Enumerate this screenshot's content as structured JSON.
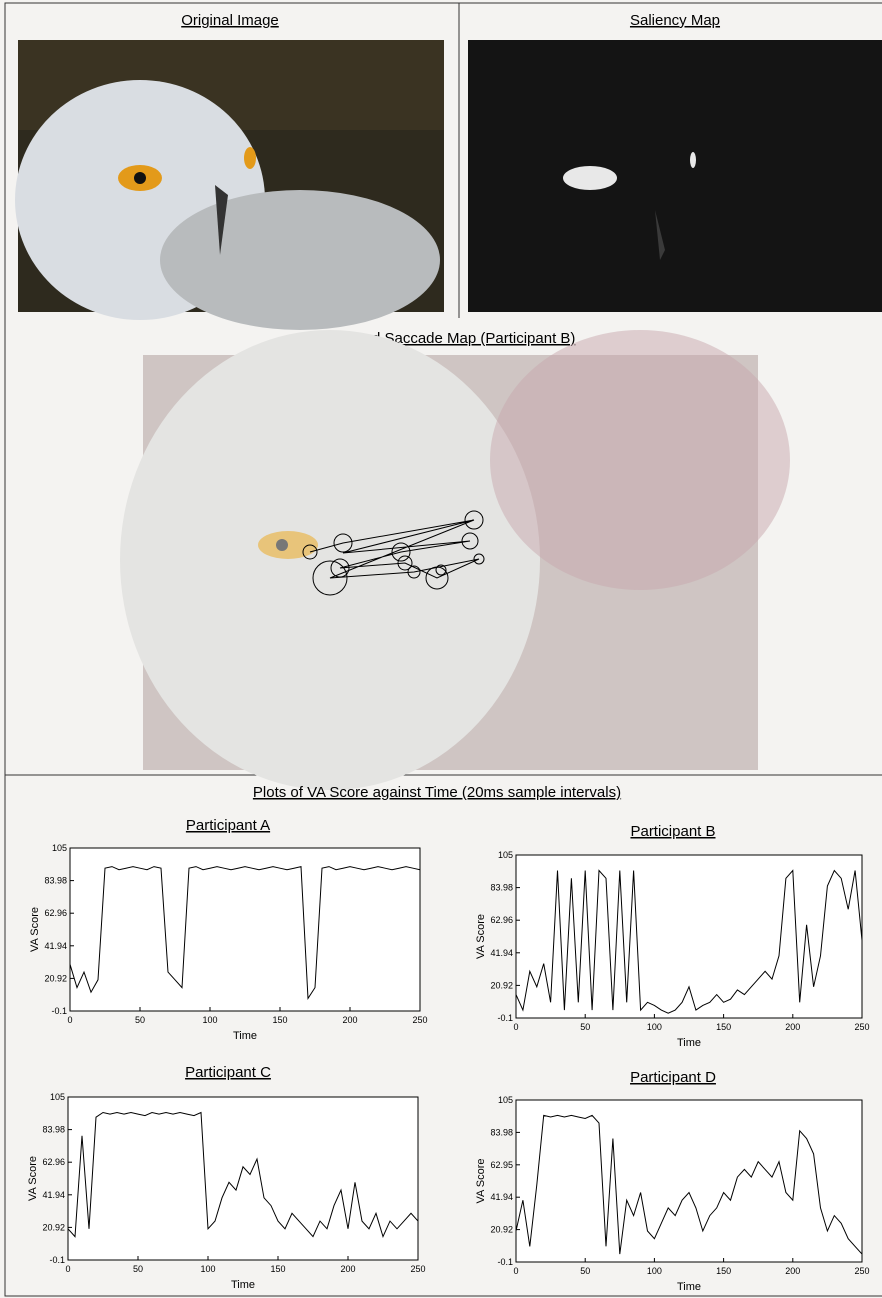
{
  "panels": {
    "original_title": "Original Image",
    "saliency_title": "Saliency Map",
    "fixation_title": "Fixation and Saccade Map (Participant B)",
    "plots_title": "Plots of VA Score against Time (20ms sample intervals)"
  },
  "chart_data": [
    {
      "type": "line",
      "title": "Participant A",
      "x_label": "Time",
      "y_label": "VA Score",
      "color": "#000000",
      "x": [
        0,
        5,
        10,
        15,
        20,
        25,
        30,
        35,
        40,
        45,
        50,
        55,
        60,
        65,
        70,
        75,
        80,
        85,
        90,
        95,
        100,
        105,
        110,
        115,
        120,
        125,
        130,
        135,
        140,
        145,
        150,
        155,
        160,
        165,
        170,
        175,
        180,
        185,
        190,
        195,
        200,
        205,
        210,
        215,
        220,
        225,
        230,
        235,
        240,
        245,
        250
      ],
      "values": [
        30,
        15,
        25,
        12,
        20,
        92,
        93,
        91,
        92,
        93,
        92,
        91,
        93,
        92,
        25,
        20,
        15,
        92,
        93,
        91,
        92,
        93,
        92,
        91,
        92,
        93,
        92,
        91,
        92,
        93,
        92,
        91,
        92,
        93,
        8,
        15,
        92,
        93,
        91,
        92,
        93,
        92,
        91,
        92,
        93,
        92,
        91,
        92,
        93,
        92,
        91
      ],
      "xlim": [
        0,
        250
      ],
      "xticks": [
        0,
        50,
        100,
        150,
        200,
        250
      ],
      "ylim": [
        -0.1,
        105
      ],
      "yticks": [
        -0.1,
        20.92,
        41.94,
        62.96,
        83.98,
        105
      ]
    },
    {
      "type": "line",
      "title": "Participant B",
      "x_label": "Time",
      "y_label": "VA Score",
      "color": "#000000",
      "x": [
        0,
        5,
        10,
        15,
        20,
        25,
        30,
        35,
        40,
        45,
        50,
        55,
        60,
        65,
        70,
        75,
        80,
        85,
        90,
        95,
        100,
        105,
        110,
        115,
        120,
        125,
        130,
        135,
        140,
        145,
        150,
        155,
        160,
        165,
        170,
        175,
        180,
        185,
        190,
        195,
        200,
        205,
        210,
        215,
        220,
        225,
        230,
        235,
        240,
        245,
        250
      ],
      "values": [
        15,
        5,
        30,
        20,
        35,
        10,
        95,
        5,
        90,
        10,
        95,
        5,
        95,
        90,
        5,
        95,
        10,
        95,
        5,
        10,
        8,
        5,
        3,
        5,
        10,
        20,
        5,
        8,
        10,
        15,
        10,
        12,
        18,
        15,
        20,
        25,
        30,
        25,
        40,
        90,
        95,
        10,
        60,
        20,
        40,
        85,
        95,
        90,
        70,
        95,
        50
      ],
      "xlim": [
        0,
        250
      ],
      "xticks": [
        0,
        50,
        100,
        150,
        200,
        250
      ],
      "ylim": [
        -0.1,
        105
      ],
      "yticks": [
        -0.1,
        20.92,
        41.94,
        62.96,
        83.98,
        105
      ]
    },
    {
      "type": "line",
      "title": "Participant C",
      "x_label": "Time",
      "y_label": "VA Score",
      "color": "#000000",
      "x": [
        0,
        5,
        10,
        15,
        20,
        25,
        30,
        35,
        40,
        45,
        50,
        55,
        60,
        65,
        70,
        75,
        80,
        85,
        90,
        95,
        100,
        105,
        110,
        115,
        120,
        125,
        130,
        135,
        140,
        145,
        150,
        155,
        160,
        165,
        170,
        175,
        180,
        185,
        190,
        195,
        200,
        205,
        210,
        215,
        220,
        225,
        230,
        235,
        240,
        245,
        250
      ],
      "values": [
        20,
        15,
        80,
        20,
        92,
        95,
        94,
        95,
        94,
        95,
        94,
        93,
        95,
        94,
        95,
        94,
        95,
        94,
        93,
        95,
        20,
        25,
        40,
        50,
        45,
        60,
        55,
        65,
        40,
        35,
        25,
        20,
        30,
        25,
        20,
        15,
        25,
        20,
        35,
        45,
        20,
        50,
        25,
        20,
        30,
        15,
        25,
        20,
        25,
        30,
        25
      ],
      "xlim": [
        0,
        250
      ],
      "xticks": [
        0,
        50,
        100,
        150,
        200,
        250
      ],
      "ylim": [
        -0.1,
        105
      ],
      "yticks": [
        -0.1,
        20.92,
        41.94,
        62.96,
        83.98,
        105
      ]
    },
    {
      "type": "line",
      "title": "Participant D",
      "x_label": "Time",
      "y_label": "VA Score",
      "color": "#000000",
      "x": [
        0,
        5,
        10,
        15,
        20,
        25,
        30,
        35,
        40,
        45,
        50,
        55,
        60,
        65,
        70,
        75,
        80,
        85,
        90,
        95,
        100,
        105,
        110,
        115,
        120,
        125,
        130,
        135,
        140,
        145,
        150,
        155,
        160,
        165,
        170,
        175,
        180,
        185,
        190,
        195,
        200,
        205,
        210,
        215,
        220,
        225,
        230,
        235,
        240,
        245,
        250
      ],
      "values": [
        20,
        40,
        10,
        50,
        95,
        94,
        95,
        94,
        95,
        94,
        93,
        95,
        90,
        10,
        80,
        5,
        40,
        30,
        45,
        20,
        15,
        25,
        35,
        30,
        40,
        45,
        35,
        20,
        30,
        35,
        45,
        40,
        55,
        60,
        55,
        65,
        60,
        55,
        65,
        45,
        40,
        85,
        80,
        70,
        35,
        20,
        30,
        25,
        15,
        10,
        5
      ],
      "xlim": [
        0,
        250
      ],
      "xticks": [
        0,
        50,
        100,
        150,
        200,
        250
      ],
      "ylim": [
        -0.1,
        105
      ],
      "yticks": [
        -0.1,
        20.92,
        41.94,
        62.95,
        83.98,
        105
      ]
    }
  ]
}
